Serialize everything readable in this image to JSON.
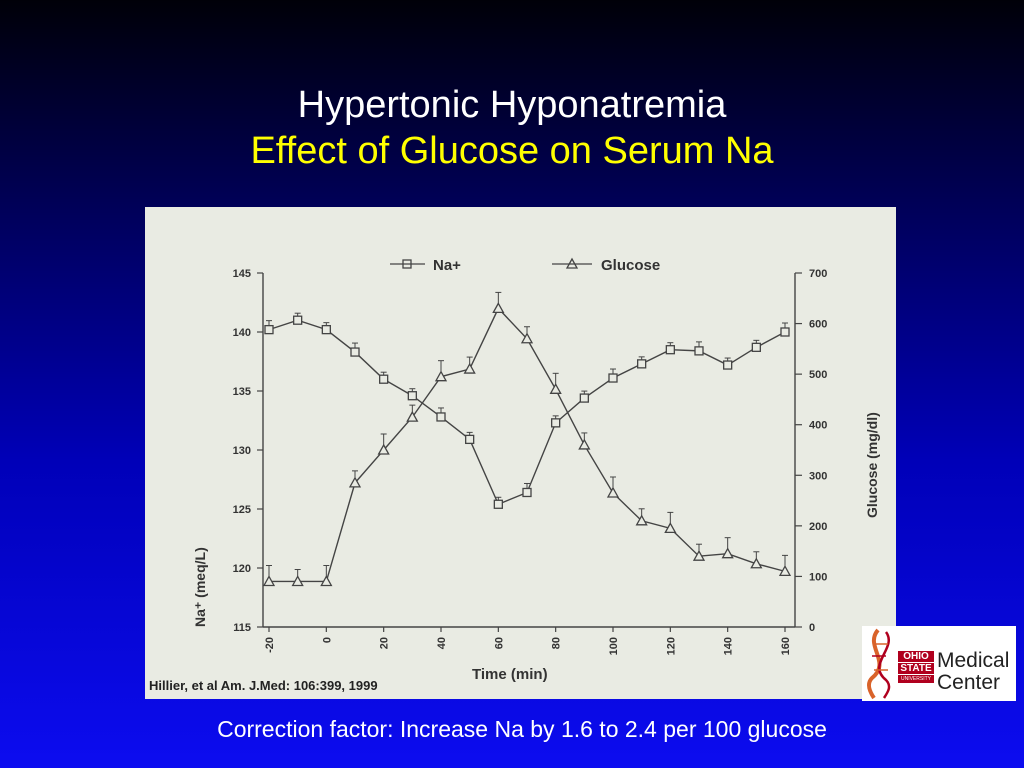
{
  "slide": {
    "title": "Hypertonic Hyponatremia",
    "subtitle": "Effect of Glucose on Serum Na",
    "footer": "Correction factor:  Increase Na by 1.6 to 2.4  per 100 glucose",
    "citation": "Hillier, et al  Am. J.Med: 106:399, 1999"
  },
  "logo": {
    "ohio": "OHIO",
    "state": "STATE",
    "university": "UNIVERSITY",
    "medical": "Medical",
    "center": "Center",
    "colors": {
      "red": "#b0001e",
      "helix": "#d9632a"
    }
  },
  "chart_data": {
    "type": "line",
    "xlabel": "Time (min)",
    "ylabel_left": "Na⁺ (meq/L)",
    "ylabel_right": "Glucose (mg/dl)",
    "xlim": [
      -20,
      160
    ],
    "ylim_left": [
      115,
      145
    ],
    "ylim_right": [
      0,
      700
    ],
    "x_ticks": [
      "-20",
      "0",
      "20",
      "40",
      "60",
      "80",
      "100",
      "120",
      "140",
      "160"
    ],
    "y_left_ticks": [
      "115",
      "120",
      "125",
      "130",
      "135",
      "140",
      "145"
    ],
    "y_right_ticks": [
      "0",
      "100",
      "200",
      "300",
      "400",
      "500",
      "600",
      "700"
    ],
    "grid": false,
    "legend": "top",
    "series": [
      {
        "name": "Na+",
        "axis": "left",
        "marker": "square",
        "x": [
          -20,
          -10,
          0,
          10,
          20,
          30,
          40,
          50,
          60,
          70,
          80,
          90,
          100,
          110,
          120,
          130,
          140,
          150,
          160
        ],
        "values": [
          140.2,
          141.0,
          140.2,
          138.3,
          136.0,
          134.6,
          132.8,
          130.9,
          125.4,
          126.4,
          132.3,
          134.4,
          136.1,
          137.3,
          138.5,
          138.4,
          137.2,
          138.7,
          140.0
        ]
      },
      {
        "name": "Glucose",
        "axis": "right",
        "marker": "triangle",
        "x": [
          -20,
          -10,
          0,
          10,
          20,
          30,
          40,
          50,
          60,
          70,
          80,
          90,
          100,
          110,
          120,
          130,
          140,
          150,
          160
        ],
        "values": [
          90,
          90,
          90,
          285,
          350,
          415,
          495,
          510,
          630,
          570,
          470,
          360,
          265,
          210,
          195,
          140,
          145,
          125,
          110
        ]
      }
    ]
  }
}
